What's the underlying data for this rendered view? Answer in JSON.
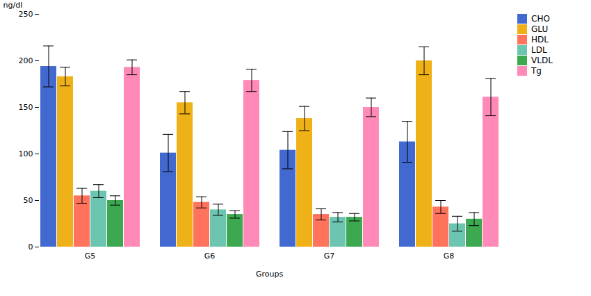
{
  "chart_data": {
    "type": "bar",
    "xlabel": "Groups",
    "ylabel": "ng/dl",
    "categories": [
      "G5",
      "G6",
      "G7",
      "G8"
    ],
    "series": [
      {
        "name": "CHO",
        "values": [
          194,
          101,
          104,
          113
        ],
        "errors": [
          22,
          20,
          20,
          22
        ]
      },
      {
        "name": "GLU",
        "values": [
          183,
          155,
          138,
          200
        ],
        "errors": [
          10,
          12,
          13,
          15
        ]
      },
      {
        "name": "HDL",
        "values": [
          55,
          48,
          35,
          43
        ],
        "errors": [
          8,
          6,
          6,
          7
        ]
      },
      {
        "name": "LDL",
        "values": [
          60,
          40,
          32,
          25
        ],
        "errors": [
          7,
          6,
          5,
          8
        ]
      },
      {
        "name": "VLDL",
        "values": [
          50,
          35,
          32,
          30
        ],
        "errors": [
          5,
          4,
          4,
          7
        ]
      },
      {
        "name": "Tg",
        "values": [
          193,
          179,
          150,
          161
        ],
        "errors": [
          8,
          12,
          10,
          20
        ]
      }
    ],
    "ylim": [
      0,
      250
    ],
    "yticks": [
      0,
      50,
      100,
      150,
      200,
      250
    ],
    "grid": false,
    "legend": "right"
  }
}
